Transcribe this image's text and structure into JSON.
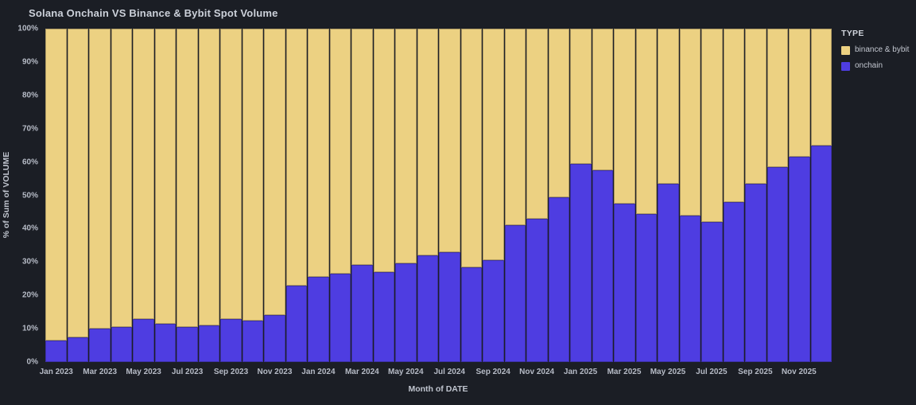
{
  "page": {
    "background_color": "#1b1e25"
  },
  "chart_data": {
    "type": "bar",
    "variant": "100%-stacked-column",
    "title": "Solana Onchain VS Binance & Bybit Spot Volume",
    "xlabel": "Month of DATE",
    "ylabel": "% of Sum of VOLUME",
    "legend_title": "TYPE",
    "legend_position": "top-right",
    "grid": false,
    "ylim": [
      0,
      100
    ],
    "y_ticks": [
      "0%",
      "10%",
      "20%",
      "30%",
      "40%",
      "50%",
      "60%",
      "70%",
      "80%",
      "90%",
      "100%"
    ],
    "x_tick_step": 2,
    "categories": [
      "Jan 2023",
      "Feb 2023",
      "Mar 2023",
      "Apr 2023",
      "May 2023",
      "Jun 2023",
      "Jul 2023",
      "Aug 2023",
      "Sep 2023",
      "Oct 2023",
      "Nov 2023",
      "Dec 2023",
      "Jan 2024",
      "Feb 2024",
      "Mar 2024",
      "Apr 2024",
      "May 2024",
      "Jun 2024",
      "Jul 2024",
      "Aug 2024",
      "Sep 2024",
      "Oct 2024",
      "Nov 2024",
      "Dec 2024",
      "Jan 2025",
      "Feb 2025",
      "Mar 2025",
      "Apr 2025",
      "May 2025",
      "Jun 2025",
      "Jul 2025",
      "Aug 2025",
      "Sep 2025",
      "Oct 2025",
      "Nov 2025",
      "Dec 2025"
    ],
    "visible_x_tick_labels": [
      "Jan 2023",
      "Mar 2023",
      "May 2023",
      "Jul 2023",
      "Sep 2023",
      "Nov 2023",
      "Jan 2024",
      "Mar 2024",
      "May 2024",
      "Jul 2024",
      "Sep 2024",
      "Nov 2024",
      "Jan 2025",
      "Mar 2025",
      "May 2025",
      "Jul 2025",
      "Sep 2025",
      "Nov 2025"
    ],
    "series": [
      {
        "name": "binance & bybit",
        "color": "#ecd182",
        "values": [
          93.5,
          92.5,
          90,
          89.5,
          87,
          88.5,
          89.5,
          89,
          87,
          87.5,
          86,
          77,
          74.5,
          73.5,
          71,
          73,
          70.5,
          68,
          67,
          71.5,
          69.5,
          59,
          57,
          50.5,
          40.5,
          42.5,
          52.5,
          55.5,
          46.5,
          56,
          58,
          52,
          46.5,
          41.5,
          38.5,
          35
        ]
      },
      {
        "name": "onchain",
        "color": "#4e3de1",
        "values": [
          6.5,
          7.5,
          10,
          10.5,
          13,
          11.5,
          10.5,
          11,
          13,
          12.5,
          14,
          23,
          25.5,
          26.5,
          29,
          27,
          29.5,
          32,
          33,
          28.5,
          30.5,
          41,
          43,
          49.5,
          59.5,
          57.5,
          47.5,
          44.5,
          53.5,
          44,
          42,
          48,
          53.5,
          58.5,
          61.5,
          65
        ]
      }
    ]
  },
  "colors": {
    "binance_bybit": "#ecd182",
    "onchain": "#4e3de1",
    "title_text": "#ccd1da",
    "tick_text": "#b6bbc6",
    "axis_title_text": "#c0c5cf"
  }
}
